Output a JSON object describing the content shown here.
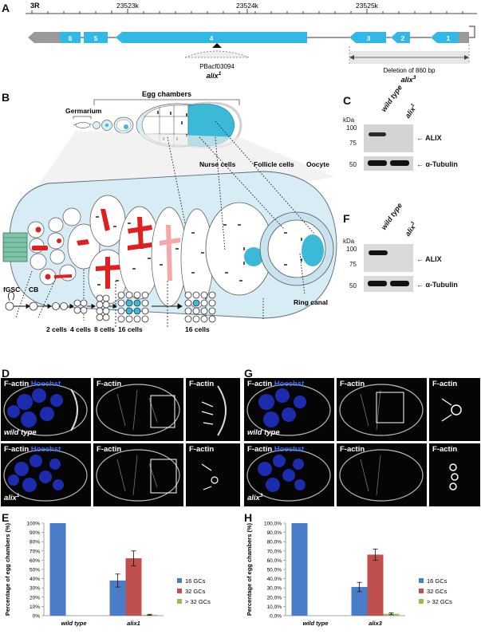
{
  "panels": {
    "A": "A",
    "B": "B",
    "C": "C",
    "D": "D",
    "E": "E",
    "F": "F",
    "G": "G",
    "H": "H"
  },
  "panel_a": {
    "chrom": "3R",
    "coords": [
      "23523k",
      "23524k",
      "23525k"
    ],
    "exons": [
      "6",
      "5",
      "4",
      "3",
      "2",
      "1"
    ],
    "insertion": "PBacf03094",
    "allele1": "alix",
    "allele1_sup": "1",
    "deletion": "Deletion of 860 bp",
    "allele3": "alix",
    "allele3_sup": "3"
  },
  "panel_b": {
    "egg_chambers": "Egg chambers",
    "germarium": "Germarium",
    "nurse": "Nurse cells",
    "follicle": "Follicle cells",
    "oocyte": "Oocyte",
    "ring": "Ring canal",
    "fgsc": "fGSC",
    "cb": "CB",
    "c2": "2 cells",
    "c4": "4 cells",
    "c8": "8 cells",
    "c16a": "16 cells",
    "c16b": "16 cells"
  },
  "panel_c": {
    "kda": "kDa",
    "wt": "wild type",
    "mut": "alix",
    "mut_sup": "1",
    "m100": "100",
    "m75": "75",
    "m50": "50",
    "alix": "← ALIX",
    "tub": "← α-Tubulin"
  },
  "panel_f": {
    "kda": "kDa",
    "wt": "wild type",
    "mut": "alix",
    "mut_sup": "3",
    "m100": "100",
    "m75": "75",
    "m50": "50",
    "alix": "← ALIX",
    "tub": "← α-Tubulin"
  },
  "micro": {
    "factin": "F-actin",
    "hoechst": "Hoechst",
    "wt": "wild type",
    "mut1": "alix",
    "mut1_sup": "1",
    "mut3": "alix",
    "mut3_sup": "3"
  },
  "colors": {
    "16": "#4a7cc7",
    "32": "#c0504d",
    "gt32": "#9bbb59",
    "exon": "#31b8e6",
    "utr": "#9a9a9a",
    "red": "#e02020",
    "cyan": "#3cb9d8",
    "germ": "#7fc4a6"
  },
  "chart_data": [
    {
      "type": "bar",
      "panel": "E",
      "ylabel": "Percentage of egg chambers (%)",
      "categories": [
        "wild type",
        "alix1"
      ],
      "yticks": [
        "0%",
        "10%",
        "20%",
        "30%",
        "40%",
        "50%",
        "60%",
        "70%",
        "80%",
        "90%",
        "100%"
      ],
      "ylim": [
        0,
        100
      ],
      "series": [
        {
          "name": "16 GCs",
          "values": [
            100,
            38
          ],
          "errors": [
            0,
            7
          ]
        },
        {
          "name": "32 GCs",
          "values": [
            0,
            62
          ],
          "errors": [
            0,
            8
          ]
        },
        {
          "name": "> 32 GCs",
          "values": [
            0,
            1
          ],
          "errors": [
            0,
            0.5
          ]
        }
      ],
      "legend": "right"
    },
    {
      "type": "bar",
      "panel": "H",
      "ylabel": "Percentage of egg chambers (%)",
      "categories": [
        "wild type",
        "alix3"
      ],
      "yticks": [
        "0,0%",
        "10,0%",
        "20,0%",
        "30,0%",
        "40,0%",
        "50,0%",
        "60,0%",
        "70,0%",
        "80,0%",
        "90,0%",
        "100,0%"
      ],
      "ylim": [
        0,
        100
      ],
      "series": [
        {
          "name": "16 GCs",
          "values": [
            100,
            31
          ],
          "errors": [
            0,
            5
          ]
        },
        {
          "name": "32 GCs",
          "values": [
            0,
            66
          ],
          "errors": [
            0,
            6
          ]
        },
        {
          "name": "> 32 GCs",
          "values": [
            0,
            2
          ],
          "errors": [
            0,
            1
          ]
        }
      ],
      "legend": "right"
    }
  ]
}
